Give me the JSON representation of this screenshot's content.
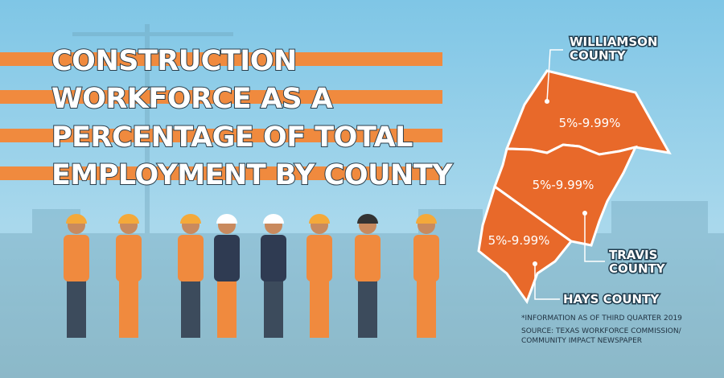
{
  "title": [
    "CONSTRUCTION",
    "WORKFORCE AS A",
    "PERCENTAGE OF TOTAL",
    "EMPLOYMENT BY COUNTY"
  ],
  "counties": [
    {
      "name": [
        "WILLIAMSON",
        "COUNTY"
      ],
      "range": "5%-9.99%"
    },
    {
      "name": [
        "TRAVIS",
        "COUNTY"
      ],
      "range": "5%-9.99%"
    },
    {
      "name": [
        "HAYS COUNTY"
      ],
      "range": "5%-9.99%"
    }
  ],
  "footnotes": [
    "*INFORMATION AS OF THIRD QUARTER 2019",
    "SOURCE: TEXAS WORKFORCE COMMISSION/",
    "COMMUNITY IMPACT NEWSPAPER"
  ]
}
